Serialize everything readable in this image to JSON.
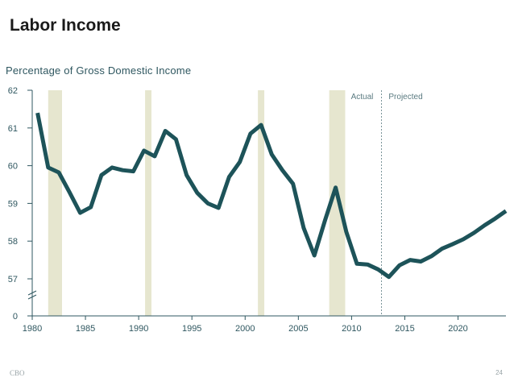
{
  "slide": {
    "title": "Labor Income",
    "footer_left": "CBO",
    "page_number": "24"
  },
  "chart_data": {
    "type": "line",
    "title": "Percentage of Gross Domestic Income",
    "xlabel": "",
    "ylabel": "",
    "xlim": [
      1980,
      2024.5
    ],
    "ylim": [
      57,
      62
    ],
    "y_axis_break": true,
    "y_ticks": [
      "0",
      "57",
      "58",
      "59",
      "60",
      "61",
      "62"
    ],
    "x_ticks": [
      1980,
      1985,
      1990,
      1995,
      2000,
      2005,
      2010,
      2015,
      2020
    ],
    "grid": false,
    "colors": {
      "line": "#1d5359",
      "recession": "#e6e6cf",
      "axis": "#2f5760"
    },
    "recessions": [
      [
        1981.5,
        1982.8
      ],
      [
        1990.6,
        1991.2
      ],
      [
        2001.2,
        2001.8
      ],
      [
        2007.9,
        2009.4
      ]
    ],
    "divider_x": 2012.8,
    "annotations": {
      "actual": "Actual",
      "projected": "Projected"
    },
    "series": [
      {
        "x": [
          1980.5,
          1981.5,
          1982.5,
          1983.5,
          1984.5,
          1985.5,
          1986.5,
          1987.5,
          1988.5,
          1989.5,
          1990.5,
          1991.5,
          1992.5,
          1993.5,
          1994.5,
          1995.5,
          1996.5,
          1997.5,
          1998.5,
          1999.5,
          2000.5,
          2001.5,
          2002.5,
          2003.5,
          2004.5,
          2005.5,
          2006.5,
          2007.5,
          2008.5,
          2009.5,
          2010.5,
          2011.5,
          2012.5,
          2013.5,
          2014.5,
          2015.5,
          2016.5,
          2017.5,
          2018.5,
          2019.5,
          2020.5,
          2021.5,
          2022.5,
          2023.5,
          2024.5
        ],
        "values": [
          61.4,
          59.95,
          59.82,
          59.3,
          58.75,
          58.9,
          59.75,
          59.95,
          59.88,
          59.85,
          60.4,
          60.25,
          60.92,
          60.7,
          59.75,
          59.28,
          59.0,
          58.88,
          59.7,
          60.1,
          60.85,
          61.08,
          60.3,
          59.88,
          59.52,
          58.35,
          57.62,
          58.55,
          59.42,
          58.25,
          57.4,
          57.38,
          57.25,
          57.05,
          57.36,
          57.5,
          57.46,
          57.6,
          57.8,
          57.92,
          58.05,
          58.22,
          58.42,
          58.6,
          58.8
        ]
      }
    ]
  }
}
